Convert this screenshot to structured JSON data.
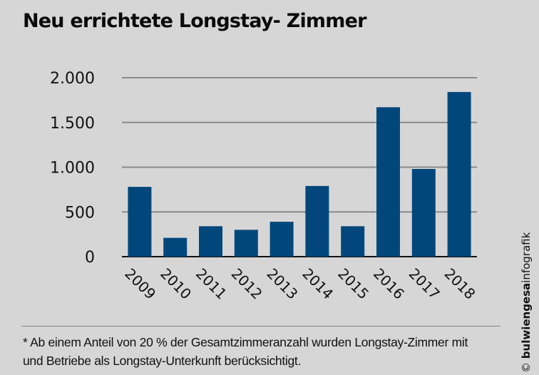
{
  "chart_data": {
    "type": "bar",
    "title": "Neu errichtete Longstay- Zimmer",
    "xlabel": "",
    "ylabel": "",
    "categories": [
      "2009",
      "2010",
      "2011",
      "2012",
      "2013",
      "2014",
      "2015",
      "2016",
      "2017",
      "2018"
    ],
    "values": [
      780,
      210,
      340,
      300,
      390,
      790,
      340,
      1670,
      980,
      1840
    ],
    "ylim": [
      0,
      2000
    ],
    "yticks": [
      0,
      500,
      1000,
      1500,
      2000
    ],
    "ytick_labels": [
      "0",
      "500",
      "1.000",
      "1.500",
      "2.000"
    ],
    "grid": true,
    "legend": null,
    "bar_color": "#01477b",
    "grid_color": "#8a8a8a"
  },
  "footnote": {
    "line1": "* Ab einem Anteil von 20 % der Gesamtzimmeranzahl wurden Longstay-Zimmer mit",
    "line2": "und Betriebe als Longstay-Unterkunft berücksichtigt."
  },
  "credit": {
    "symbol": "©",
    "brand": "bulwiengesa",
    "suffix": "infografik"
  }
}
